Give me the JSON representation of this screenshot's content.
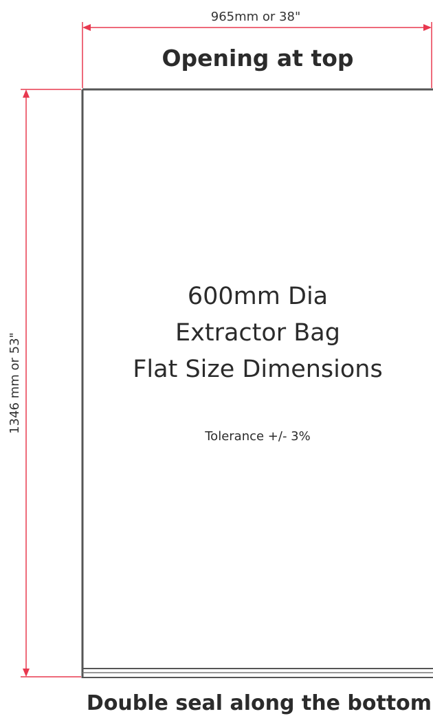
{
  "dimensions": {
    "width": "965mm or 38\"",
    "height": "1346 mm or 53\""
  },
  "labels": {
    "top": "Opening at top",
    "bottom": "Double seal along the bottom"
  },
  "center": {
    "lines": [
      "600mm Dia",
      "Extractor Bag",
      "Flat Size Dimensions"
    ],
    "tolerance": "Tolerance +/- 3%"
  },
  "colors": {
    "dimension_line": "#e8384f",
    "outline": "#555555",
    "text": "#2b2b2b"
  }
}
